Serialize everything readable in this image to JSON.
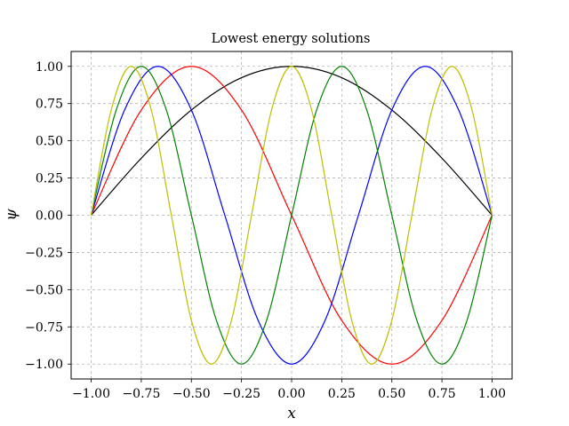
{
  "chart_data": {
    "type": "line",
    "title": "Lowest energy solutions",
    "xlabel": "x",
    "ylabel": "ψ",
    "xlim": [
      -1.1,
      1.1
    ],
    "ylim": [
      -1.1,
      1.1
    ],
    "grid": true,
    "grid_style": "dashed",
    "legend": "none",
    "xticks": [
      -1.0,
      -0.75,
      -0.5,
      -0.25,
      0.0,
      0.25,
      0.5,
      0.75,
      1.0
    ],
    "xtick_labels": [
      "−1.00",
      "−0.75",
      "−0.50",
      "−0.25",
      "0.00",
      "0.25",
      "0.50",
      "0.75",
      "1.00"
    ],
    "yticks": [
      -1.0,
      -0.75,
      -0.5,
      -0.25,
      0.0,
      0.25,
      0.5,
      0.75,
      1.0
    ],
    "ytick_labels": [
      "−1.00",
      "−0.75",
      "−0.50",
      "−0.25",
      "0.00",
      "0.25",
      "0.50",
      "0.75",
      "1.00"
    ],
    "series": [
      {
        "color": "#000000",
        "x": [
          -1.0,
          -0.75,
          -0.5,
          -0.25,
          0.0,
          0.25,
          0.5,
          0.75,
          1.0
        ],
        "y": [
          0.0,
          0.383,
          0.707,
          0.924,
          1.0,
          0.924,
          0.707,
          0.383,
          0.0
        ]
      },
      {
        "color": "#ff0000",
        "x": [
          -1.0,
          -0.75,
          -0.5,
          -0.25,
          0.0,
          0.25,
          0.5,
          0.75,
          1.0
        ],
        "y": [
          0.0,
          0.707,
          1.0,
          0.707,
          0.0,
          -0.707,
          -1.0,
          -0.707,
          0.0
        ]
      },
      {
        "color": "#0000ff",
        "x": [
          -1.0,
          -0.8333,
          -0.6667,
          -0.5,
          -0.3333,
          -0.1667,
          0.0,
          0.1667,
          0.3333,
          0.5,
          0.6667,
          0.8333,
          1.0
        ],
        "y": [
          0.0,
          0.707,
          1.0,
          0.707,
          0.0,
          -0.707,
          -1.0,
          -0.707,
          0.0,
          0.707,
          1.0,
          0.707,
          0.0
        ]
      },
      {
        "color": "#008000",
        "x": [
          -1.0,
          -0.875,
          -0.75,
          -0.625,
          -0.5,
          -0.375,
          -0.25,
          -0.125,
          0.0,
          0.125,
          0.25,
          0.375,
          0.5,
          0.625,
          0.75,
          0.875,
          1.0
        ],
        "y": [
          0.0,
          0.707,
          1.0,
          0.707,
          0.0,
          -0.707,
          -1.0,
          -0.707,
          0.0,
          0.707,
          1.0,
          0.707,
          0.0,
          -0.707,
          -1.0,
          -0.707,
          0.0
        ]
      },
      {
        "color": "#bfbf00",
        "x": [
          -1.0,
          -0.9,
          -0.8,
          -0.7,
          -0.6,
          -0.5,
          -0.4,
          -0.3,
          -0.2,
          -0.1,
          0.0,
          0.1,
          0.2,
          0.3,
          0.4,
          0.5,
          0.6,
          0.7,
          0.8,
          0.9,
          1.0
        ],
        "y": [
          0.0,
          0.707,
          1.0,
          0.707,
          0.0,
          -0.707,
          -1.0,
          -0.707,
          0.0,
          0.707,
          1.0,
          0.707,
          0.0,
          -0.707,
          -1.0,
          -0.707,
          0.0,
          0.707,
          1.0,
          0.707,
          0.0
        ]
      }
    ]
  }
}
